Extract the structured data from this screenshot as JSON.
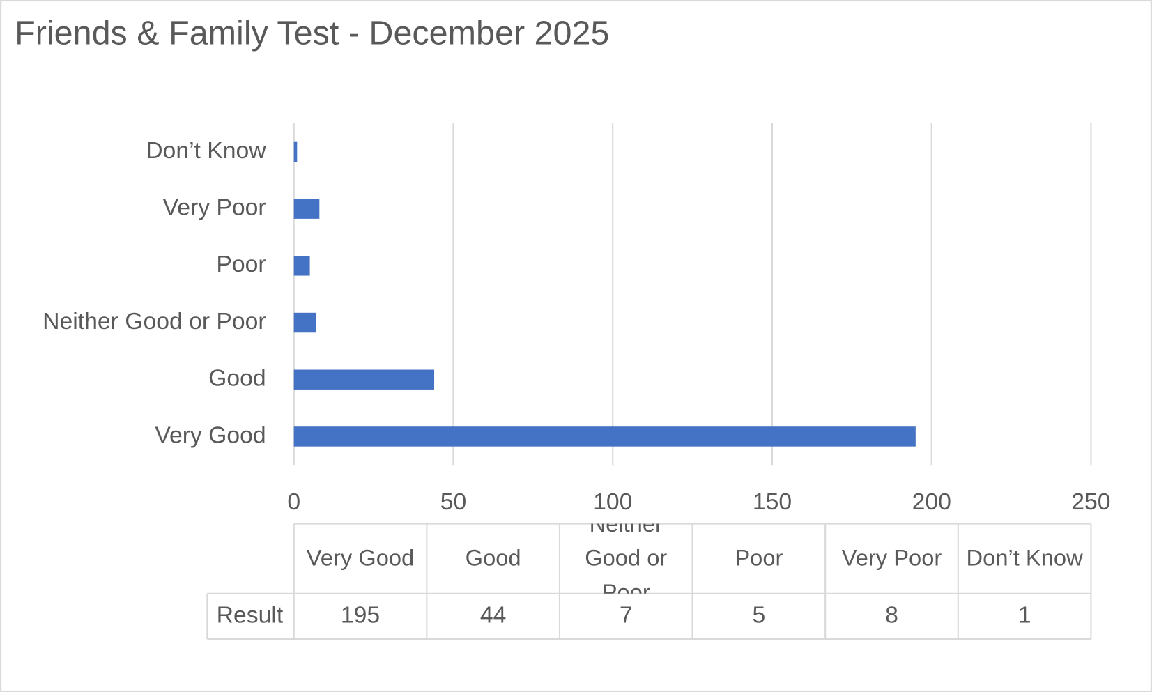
{
  "chart_data": {
    "type": "bar",
    "orientation": "horizontal",
    "title": "Friends & Family Test - December 2025",
    "categories": [
      "Very Good",
      "Good",
      "Neither Good or Poor",
      "Poor",
      "Very Poor",
      "Don’t Know"
    ],
    "series": [
      {
        "name": "Result",
        "color": "#4472c4",
        "values": [
          195,
          44,
          7,
          5,
          8,
          1
        ]
      }
    ],
    "xlim": [
      0,
      250
    ],
    "xticks": [
      0,
      50,
      100,
      150,
      200,
      250
    ],
    "grid": true,
    "data_table": true
  }
}
